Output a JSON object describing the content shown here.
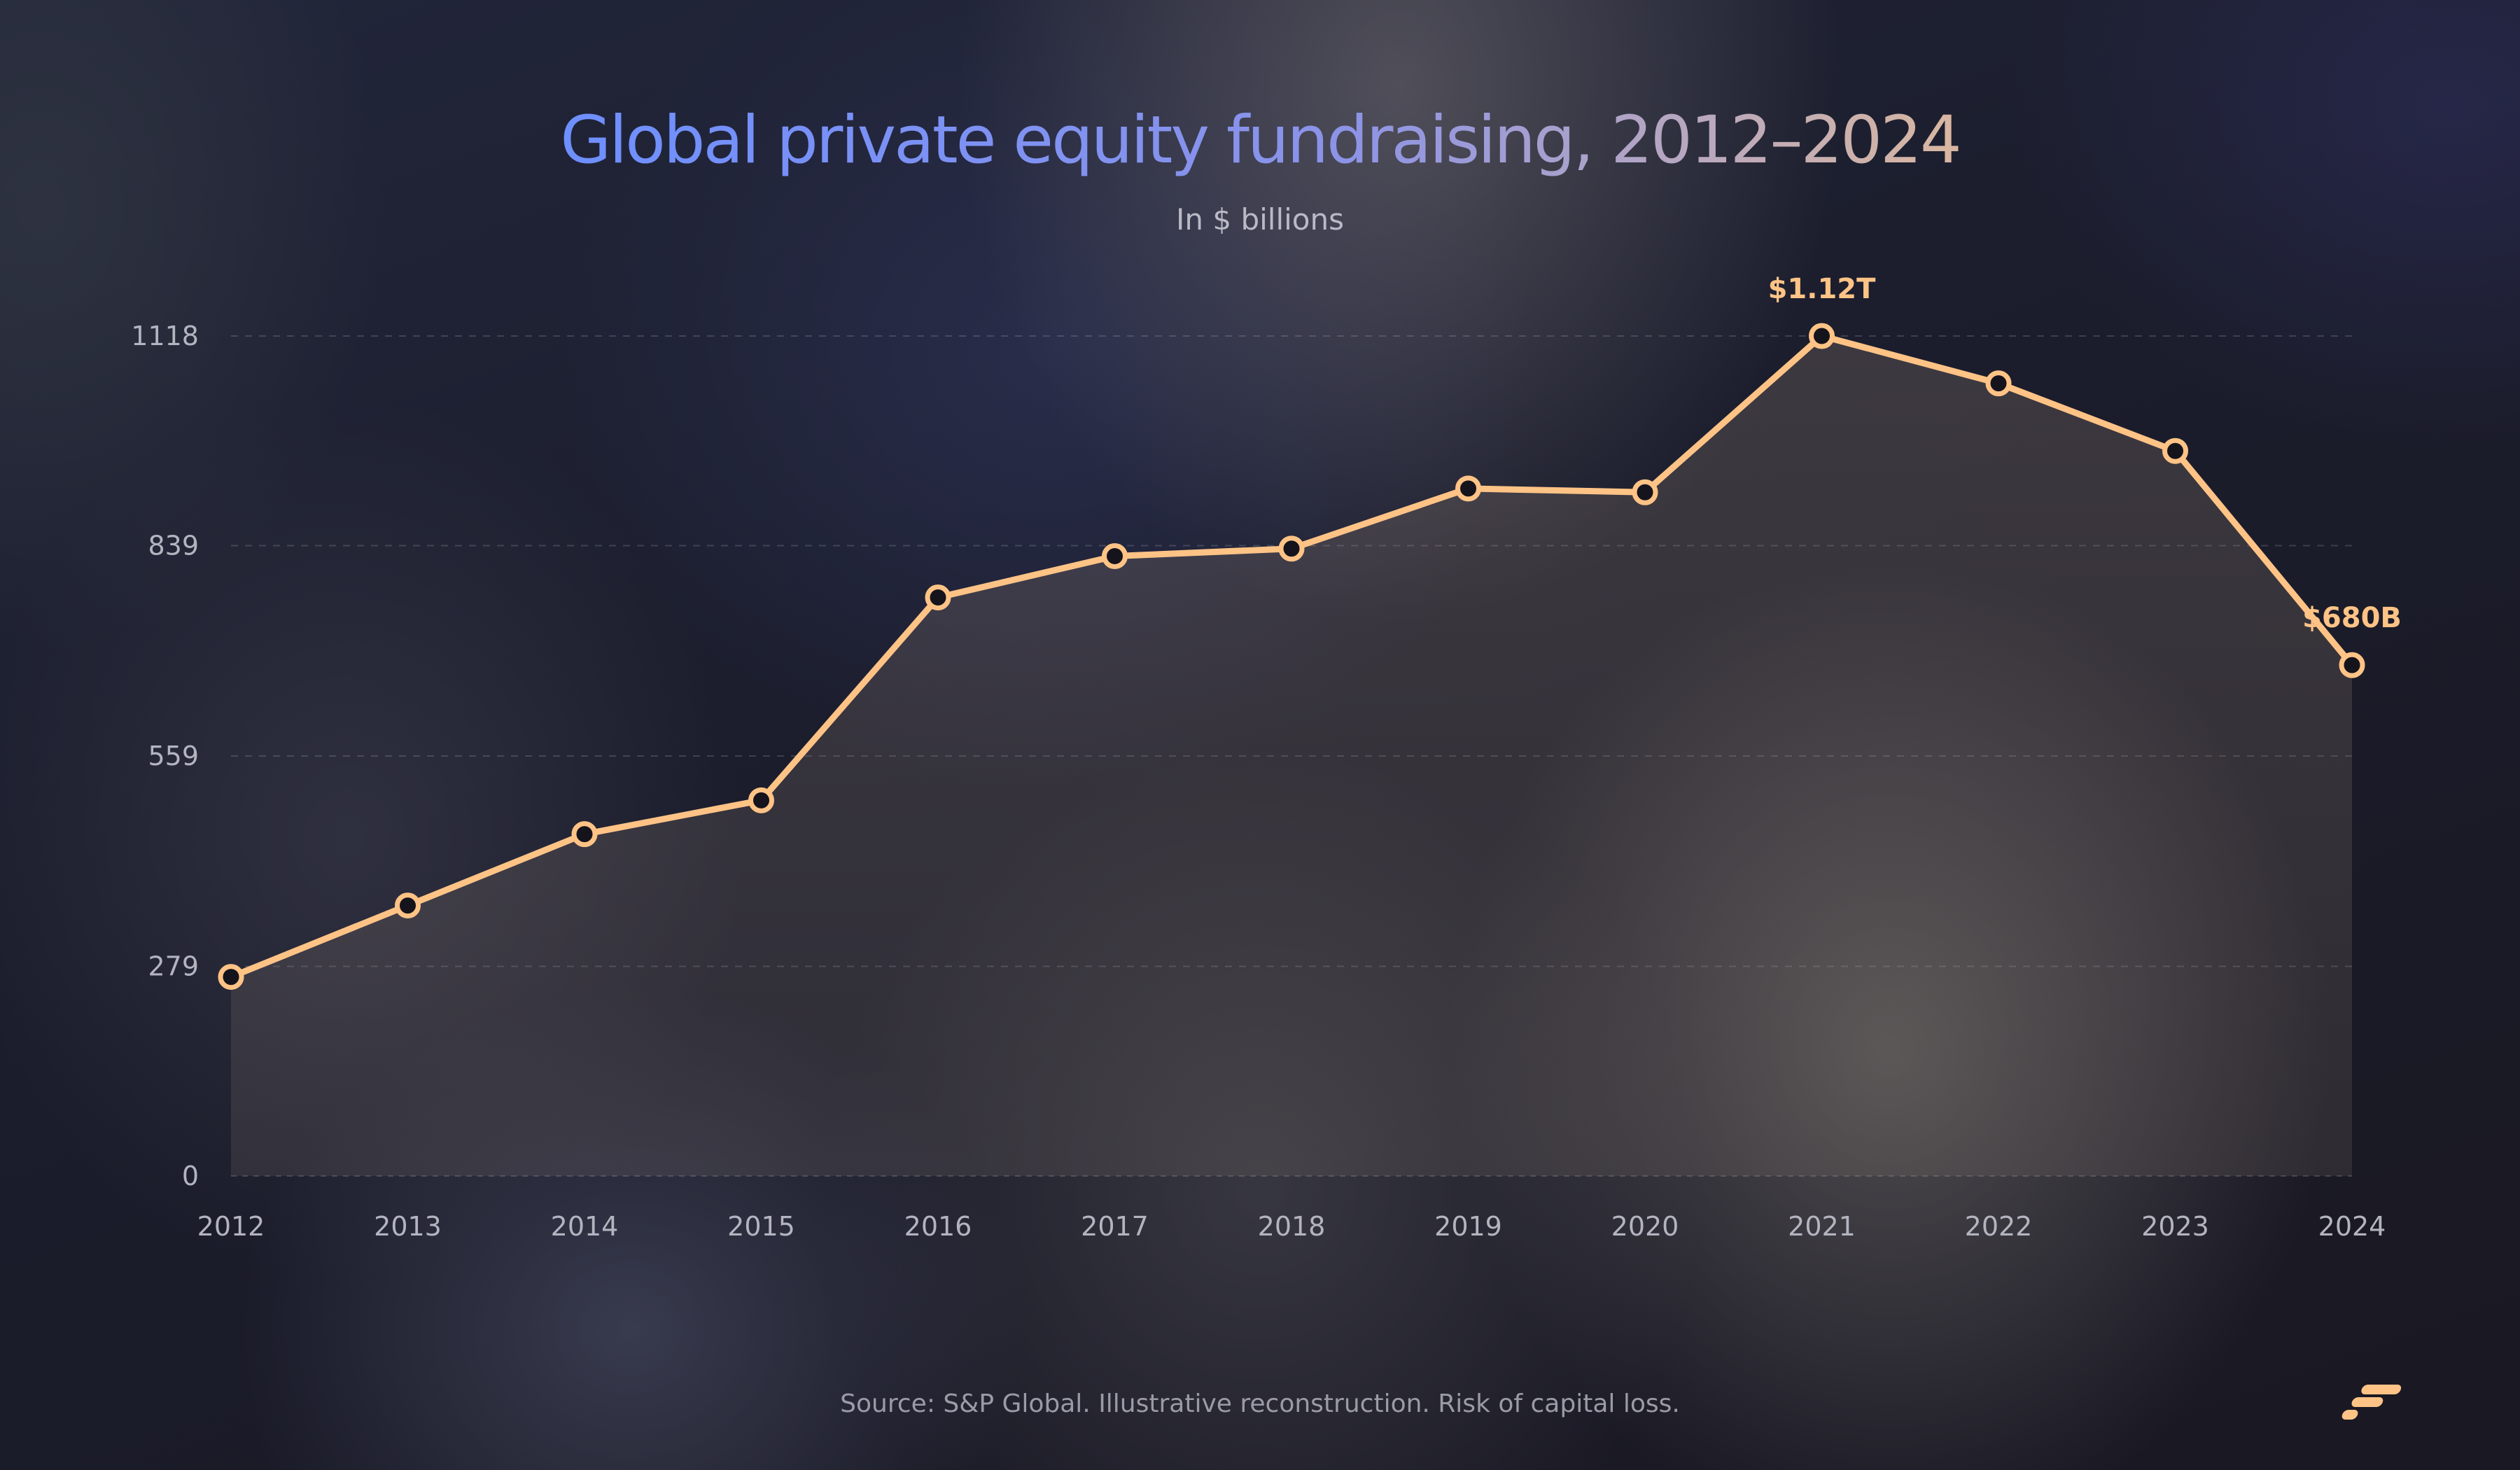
{
  "chart_data": {
    "type": "line",
    "title": "Global private equity fundraising, 2012–2024",
    "subtitle": "In $ billions",
    "xlabel": "",
    "ylabel": "",
    "categories": [
      "2012",
      "2013",
      "2014",
      "2015",
      "2016",
      "2017",
      "2018",
      "2019",
      "2020",
      "2021",
      "2022",
      "2023",
      "2024"
    ],
    "values": [
      265,
      360,
      455,
      500,
      770,
      825,
      835,
      915,
      910,
      1118,
      1055,
      965,
      680
    ],
    "ylim": [
      0,
      1118
    ],
    "yticks": [
      0,
      279,
      559,
      839,
      1118
    ],
    "ytick_labels": [
      "0",
      "279",
      "559",
      "839",
      "1118"
    ],
    "grid": true,
    "annotations": [
      {
        "label": "$1.12T",
        "category": "2021"
      },
      {
        "label": "$680B",
        "category": "2024"
      }
    ],
    "colors": {
      "line": "#ffc386",
      "marker_fill": "#15141c",
      "title_start": "#6e8fff",
      "title_end": "#d9b7a0"
    }
  },
  "footer": {
    "source": "Source: S&P Global. Illustrative reconstruction. Risk of capital loss."
  },
  "brand": {
    "logo_icon": "brand-logo-icon",
    "logo_color": "#ffc386"
  }
}
